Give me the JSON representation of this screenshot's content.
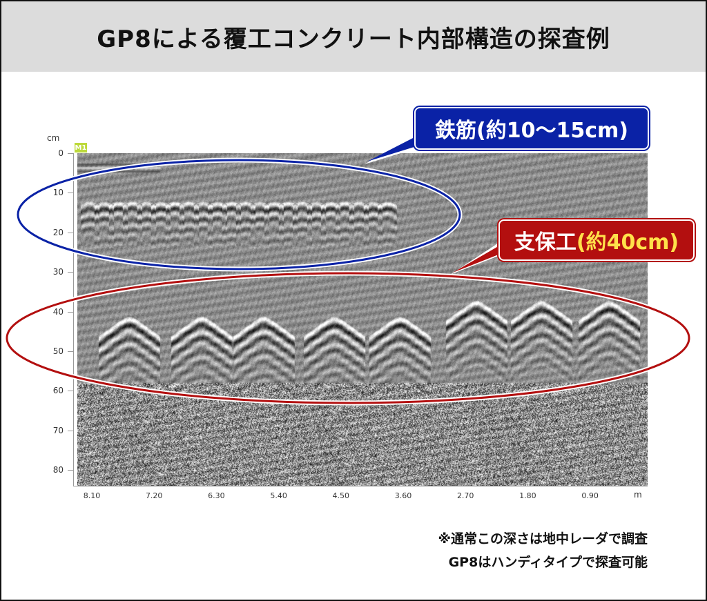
{
  "title": "GP8による覆工コンクリート内部構造の探査例",
  "axes": {
    "y_unit": "cm",
    "x_unit": "m",
    "marker": "M1",
    "y_ticks": [
      "0",
      "10",
      "20",
      "30",
      "40",
      "50",
      "60",
      "70",
      "80"
    ],
    "x_ticks": [
      "8.10",
      "7.20",
      "6.30",
      "5.40",
      "4.50",
      "3.60",
      "2.70",
      "1.80",
      "0.90"
    ]
  },
  "labels": {
    "rebar": "鉄筋(約10〜15cm)",
    "support_prefix": "支保工",
    "support_depth": "(約40cm)"
  },
  "colors": {
    "rebar": "#0a22a6",
    "support": "#b30f0f",
    "highlight": "#ffe14a",
    "title_bg": "#dcdcdc"
  },
  "notes": {
    "line1": "※通常この深さは地中レーダで調査",
    "line2": "GP8はハンディタイプで探査可能"
  }
}
